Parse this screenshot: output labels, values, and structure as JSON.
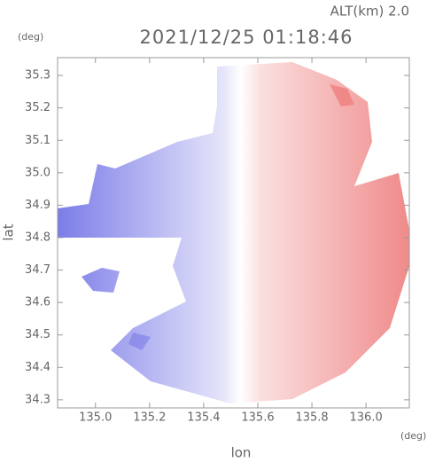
{
  "chart_data": {
    "type": "radar-field",
    "title": "2021/12/25 01:18:46",
    "subtitle": "ALT(km) 2.0",
    "x_label": "lon",
    "y_label": "lat",
    "x_unit": "(deg)",
    "y_unit": "(deg)",
    "xlim": [
      134.86,
      136.16
    ],
    "ylim": [
      34.275,
      35.355
    ],
    "xticks": [
      {
        "value": 135.0,
        "label": "135.0"
      },
      135.2,
      135.4,
      135.6,
      135.8,
      {
        "value": 136.0,
        "label": "136.0"
      }
    ],
    "yticks": [
      35.3,
      35.2,
      35.1,
      {
        "value": 35.0,
        "label": "35.0"
      },
      34.9,
      34.8,
      34.7,
      34.6,
      34.5,
      34.4,
      34.3
    ]
  }
}
